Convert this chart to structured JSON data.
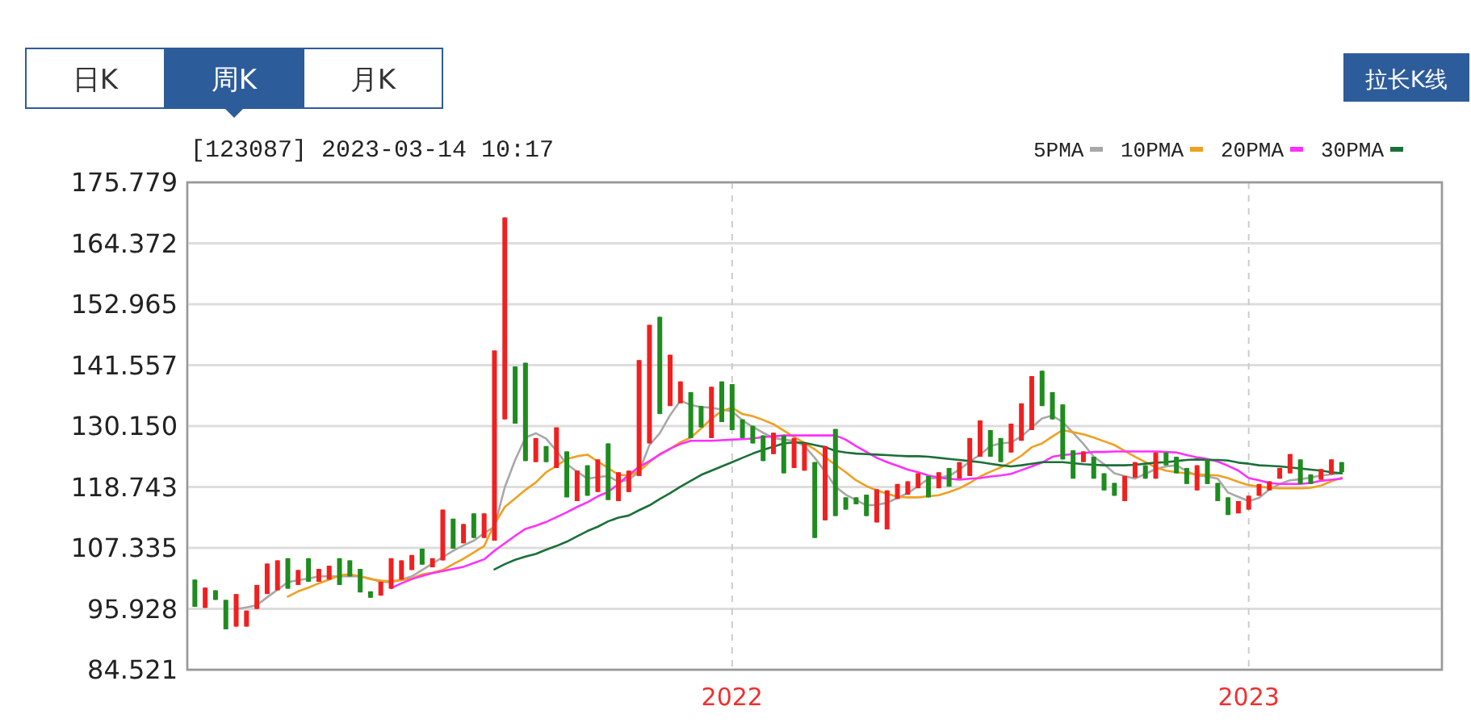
{
  "chart_data": {
    "type": "candlestick",
    "title": "[123087] 2023-03-14 10:17",
    "annotations": [
      "日K",
      "周K",
      "月K",
      "拉长K线"
    ],
    "categories": [
      null,
      null,
      null,
      null,
      null,
      null,
      null,
      null,
      null,
      null,
      null,
      null,
      null,
      null,
      null,
      null,
      null,
      null,
      null,
      null,
      null,
      null,
      null,
      null,
      null,
      null,
      null,
      null,
      null,
      null,
      null,
      null,
      null,
      null,
      null,
      null,
      null,
      null,
      null,
      null,
      null,
      null,
      null,
      null,
      null,
      null,
      null,
      null,
      null,
      null,
      null,
      null,
      "2022",
      null,
      null,
      null,
      null,
      null,
      null,
      null,
      null,
      null,
      null,
      null,
      null,
      null,
      null,
      null,
      null,
      null,
      null,
      null,
      null,
      null,
      null,
      null,
      null,
      null,
      null,
      null,
      null,
      null,
      null,
      null,
      null,
      null,
      null,
      null,
      null,
      null,
      null,
      null,
      null,
      null,
      null,
      null,
      null,
      null,
      null,
      null,
      null,
      null,
      "2023",
      null,
      null,
      null,
      null,
      null,
      null,
      null,
      null,
      null
    ],
    "ohlc": [
      [
        101.4,
        101.4,
        96.3,
        96.3
      ],
      [
        96.1,
        99.9,
        96.1,
        99.9
      ],
      [
        99.4,
        99.4,
        97.6,
        97.6
      ],
      [
        97.6,
        97.6,
        92.1,
        92.1
      ],
      [
        92.6,
        98.7,
        92.6,
        98.7
      ],
      [
        92.6,
        95.6,
        92.6,
        95.6
      ],
      [
        95.9,
        100.4,
        95.9,
        100.4
      ],
      [
        98.7,
        104.4,
        98.7,
        104.4
      ],
      [
        99.4,
        105.0,
        99.4,
        105.0
      ],
      [
        105.4,
        105.4,
        99.7,
        99.7
      ],
      [
        100.4,
        103.2,
        100.4,
        103.2
      ],
      [
        105.4,
        105.4,
        101.0,
        101.0
      ],
      [
        101.0,
        103.4,
        101.0,
        103.4
      ],
      [
        101.4,
        104.0,
        101.4,
        104.0
      ],
      [
        105.4,
        105.4,
        100.4,
        100.4
      ],
      [
        105.0,
        105.0,
        102.0,
        102.0
      ],
      [
        103.4,
        103.4,
        99.0,
        99.0
      ],
      [
        99.2,
        99.2,
        98.0,
        98.0
      ],
      [
        98.4,
        101.0,
        98.4,
        101.0
      ],
      [
        99.7,
        105.4,
        99.7,
        105.4
      ],
      [
        101.4,
        105.0,
        101.4,
        105.0
      ],
      [
        103.2,
        106.0,
        103.2,
        106.0
      ],
      [
        107.2,
        107.2,
        104.2,
        104.2
      ],
      [
        103.7,
        105.4,
        103.7,
        105.4
      ],
      [
        105.0,
        114.5,
        105.0,
        114.5
      ],
      [
        112.8,
        112.8,
        107.2,
        107.2
      ],
      [
        108.2,
        111.8,
        108.2,
        111.8
      ],
      [
        113.8,
        113.8,
        109.2,
        109.2
      ],
      [
        109.2,
        113.8,
        109.2,
        113.8
      ],
      [
        108.7,
        144.3,
        108.7,
        144.3
      ],
      [
        131.4,
        169.2,
        131.4,
        169.2
      ],
      [
        141.3,
        141.3,
        130.6,
        130.6
      ],
      [
        142.0,
        142.0,
        123.6,
        123.6
      ],
      [
        123.4,
        127.9,
        123.4,
        127.9
      ],
      [
        126.4,
        126.4,
        123.4,
        123.4
      ],
      [
        122.3,
        129.9,
        122.3,
        129.9
      ],
      [
        125.4,
        125.4,
        116.8,
        116.8
      ],
      [
        116.1,
        121.8,
        116.1,
        121.8
      ],
      [
        122.8,
        122.8,
        117.1,
        117.1
      ],
      [
        117.8,
        123.9,
        117.8,
        123.9
      ],
      [
        126.9,
        126.9,
        116.3,
        116.3
      ],
      [
        116.1,
        121.5,
        116.1,
        121.5
      ],
      [
        117.8,
        121.8,
        117.8,
        121.8
      ],
      [
        120.8,
        142.5,
        120.8,
        142.5
      ],
      [
        126.9,
        149.1,
        126.9,
        149.1
      ],
      [
        150.6,
        150.6,
        132.4,
        132.4
      ],
      [
        133.9,
        143.5,
        133.9,
        143.5
      ],
      [
        134.4,
        138.5,
        134.4,
        138.5
      ],
      [
        136.5,
        136.5,
        127.9,
        127.9
      ],
      [
        133.9,
        133.9,
        129.9,
        129.9
      ],
      [
        127.9,
        137.5,
        127.9,
        137.5
      ],
      [
        138.5,
        138.5,
        130.9,
        130.9
      ],
      [
        138.0,
        138.0,
        129.4,
        129.4
      ],
      [
        131.4,
        131.4,
        127.9,
        127.9
      ],
      [
        130.2,
        130.2,
        126.9,
        126.9
      ],
      [
        128.4,
        128.4,
        123.6,
        123.6
      ],
      [
        124.9,
        128.9,
        124.9,
        128.9
      ],
      [
        128.4,
        128.4,
        121.3,
        121.3
      ],
      [
        122.3,
        127.9,
        122.3,
        127.9
      ],
      [
        121.8,
        126.9,
        121.8,
        126.9
      ],
      [
        123.4,
        123.4,
        109.2,
        109.2
      ],
      [
        112.5,
        126.4,
        112.5,
        126.4
      ],
      [
        129.6,
        129.6,
        113.3,
        113.3
      ],
      [
        116.8,
        116.8,
        114.5,
        114.5
      ],
      [
        116.8,
        116.8,
        115.5,
        115.5
      ],
      [
        117.3,
        117.3,
        113.3,
        113.3
      ],
      [
        112.1,
        118.3,
        112.1,
        118.3
      ],
      [
        110.8,
        118.1,
        110.8,
        118.1
      ],
      [
        116.5,
        119.3,
        116.5,
        119.3
      ],
      [
        117.3,
        119.8,
        117.3,
        119.8
      ],
      [
        118.5,
        121.3,
        118.5,
        121.3
      ],
      [
        120.8,
        120.8,
        116.8,
        116.8
      ],
      [
        118.5,
        121.5,
        118.5,
        121.5
      ],
      [
        122.3,
        122.3,
        118.8,
        118.8
      ],
      [
        120.3,
        123.4,
        120.3,
        123.4
      ],
      [
        120.8,
        127.9,
        120.8,
        127.9
      ],
      [
        124.4,
        131.2,
        124.4,
        131.2
      ],
      [
        129.4,
        129.4,
        124.4,
        124.4
      ],
      [
        127.9,
        127.9,
        123.4,
        123.4
      ],
      [
        125.2,
        130.6,
        125.2,
        130.6
      ],
      [
        127.4,
        134.4,
        127.4,
        134.4
      ],
      [
        129.4,
        139.5,
        129.4,
        139.5
      ],
      [
        140.5,
        140.5,
        133.9,
        133.9
      ],
      [
        136.5,
        136.5,
        131.4,
        131.4
      ],
      [
        134.2,
        134.2,
        123.9,
        123.9
      ],
      [
        125.6,
        125.6,
        120.3,
        120.3
      ],
      [
        123.4,
        125.4,
        123.4,
        125.4
      ],
      [
        124.4,
        124.4,
        120.3,
        120.3
      ],
      [
        121.3,
        121.3,
        118.1,
        118.1
      ],
      [
        119.5,
        119.5,
        117.1,
        117.1
      ],
      [
        116.1,
        120.8,
        116.1,
        120.8
      ],
      [
        120.5,
        123.4,
        120.5,
        123.4
      ],
      [
        122.8,
        122.8,
        120.3,
        120.3
      ],
      [
        120.3,
        125.2,
        120.3,
        125.2
      ],
      [
        125.2,
        125.2,
        122.8,
        122.8
      ],
      [
        124.4,
        124.4,
        121.3,
        121.3
      ],
      [
        122.3,
        122.3,
        119.3,
        119.3
      ],
      [
        118.1,
        122.8,
        118.1,
        122.8
      ],
      [
        123.9,
        123.9,
        119.3,
        119.3
      ],
      [
        119.5,
        119.5,
        116.1,
        116.1
      ],
      [
        116.8,
        116.8,
        113.5,
        113.5
      ],
      [
        113.8,
        116.1,
        113.8,
        116.1
      ],
      [
        114.5,
        117.1,
        114.5,
        117.1
      ],
      [
        117.1,
        119.3,
        117.1,
        119.3
      ],
      [
        118.1,
        119.8,
        118.1,
        119.8
      ],
      [
        120.3,
        122.3,
        120.3,
        122.3
      ],
      [
        121.3,
        124.9,
        121.3,
        124.9
      ],
      [
        123.9,
        123.9,
        119.3,
        119.3
      ],
      [
        121.1,
        121.1,
        119.3,
        119.3
      ],
      [
        120.1,
        122.1,
        120.1,
        122.1
      ],
      [
        121.1,
        123.9,
        121.1,
        123.9
      ],
      [
        123.4,
        123.4,
        121.5,
        121.5
      ]
    ],
    "colors": [
      "#1e8c1e",
      "#f02020",
      "#1e8c1e",
      "#1e8c1e",
      "#f02020",
      "#f02020",
      "#f02020",
      "#f02020",
      "#f02020",
      "#1e8c1e",
      "#f02020",
      "#1e8c1e",
      "#f02020",
      "#f02020",
      "#1e8c1e",
      "#1e8c1e",
      "#1e8c1e",
      "#1e8c1e",
      "#f02020",
      "#f02020",
      "#f02020",
      "#f02020",
      "#1e8c1e",
      "#f02020",
      "#f02020",
      "#1e8c1e",
      "#f02020",
      "#1e8c1e",
      "#f02020",
      "#f02020",
      "#f02020",
      "#1e8c1e",
      "#1e8c1e",
      "#f02020",
      "#1e8c1e",
      "#f02020",
      "#1e8c1e",
      "#f02020",
      "#1e8c1e",
      "#f02020",
      "#1e8c1e",
      "#f02020",
      "#f02020",
      "#f02020",
      "#f02020",
      "#1e8c1e",
      "#f02020",
      "#f02020",
      "#1e8c1e",
      "#1e8c1e",
      "#f02020",
      "#1e8c1e",
      "#1e8c1e",
      "#1e8c1e",
      "#1e8c1e",
      "#1e8c1e",
      "#f02020",
      "#1e8c1e",
      "#f02020",
      "#f02020",
      "#1e8c1e",
      "#f02020",
      "#1e8c1e",
      "#1e8c1e",
      "#1e8c1e",
      "#1e8c1e",
      "#f02020",
      "#f02020",
      "#f02020",
      "#f02020",
      "#f02020",
      "#1e8c1e",
      "#f02020",
      "#1e8c1e",
      "#f02020",
      "#f02020",
      "#f02020",
      "#1e8c1e",
      "#1e8c1e",
      "#f02020",
      "#f02020",
      "#f02020",
      "#1e8c1e",
      "#1e8c1e",
      "#1e8c1e",
      "#1e8c1e",
      "#f02020",
      "#1e8c1e",
      "#1e8c1e",
      "#1e8c1e",
      "#f02020",
      "#f02020",
      "#1e8c1e",
      "#f02020",
      "#1e8c1e",
      "#1e8c1e",
      "#1e8c1e",
      "#f02020",
      "#1e8c1e",
      "#1e8c1e",
      "#1e8c1e",
      "#f02020",
      "#f02020",
      "#f02020",
      "#f02020",
      "#f02020",
      "#f02020",
      "#1e8c1e",
      "#1e8c1e",
      "#f02020",
      "#f02020",
      "#1e8c1e"
    ],
    "series": [
      {
        "name": "5PMA",
        "type": "line",
        "color": "#a8a8a8",
        "values": [
          null,
          null,
          null,
          null,
          95.9,
          96.2,
          96.6,
          98.1,
          99.5,
          100.9,
          101.3,
          101.6,
          102.0,
          102.0,
          102.0,
          102.0,
          102.0,
          101.6,
          101.0,
          100.9,
          101.4,
          102.0,
          103.2,
          104.4,
          105.6,
          106.8,
          107.8,
          108.7,
          110.1,
          111.3,
          118.7,
          123.8,
          128.0,
          128.8,
          127.8,
          125.5,
          123.0,
          121.6,
          120.3,
          120.6,
          120.8,
          119.7,
          120.1,
          121.6,
          126.6,
          128.8,
          132.2,
          134.9,
          134.1,
          133.7,
          133.6,
          133.2,
          132.9,
          131.2,
          130.0,
          128.9,
          127.9,
          127.6,
          127.4,
          126.4,
          124.2,
          121.6,
          118.8,
          117.3,
          116.3,
          115.3,
          115.4,
          115.8,
          116.7,
          117.6,
          118.9,
          120.3,
          120.5,
          120.8,
          122.0,
          123.5,
          124.8,
          126.4,
          126.9,
          127.1,
          128.2,
          129.9,
          131.6,
          132.1,
          130.9,
          128.9,
          126.8,
          124.4,
          123.0,
          121.3,
          120.8,
          120.3,
          121.2,
          122.1,
          122.6,
          122.8,
          121.7,
          120.9,
          120.7,
          120.3,
          117.7,
          116.9,
          116.1,
          116.7,
          118.3,
          119.3,
          120.0,
          120.2,
          120.5,
          120.9,
          121.1,
          121.3
        ]
      },
      {
        "name": "10PMA",
        "type": "line",
        "color": "#f0a020",
        "values": [
          null,
          null,
          null,
          null,
          null,
          null,
          null,
          null,
          null,
          98.2,
          99.2,
          99.9,
          100.7,
          101.4,
          102.2,
          102.4,
          102.0,
          101.5,
          101.2,
          101.1,
          101.3,
          101.6,
          102.4,
          102.7,
          103.2,
          104.3,
          105.3,
          106.5,
          107.7,
          111.8,
          115.0,
          116.6,
          118.2,
          119.6,
          121.5,
          122.7,
          124.0,
          124.5,
          124.8,
          123.5,
          122.3,
          121.0,
          120.9,
          121.7,
          123.4,
          124.9,
          125.9,
          127.1,
          128.0,
          129.7,
          131.5,
          133.0,
          133.6,
          132.4,
          132.0,
          131.3,
          130.5,
          129.3,
          128.1,
          127.0,
          125.8,
          124.3,
          122.9,
          121.5,
          120.0,
          118.9,
          118.1,
          117.5,
          116.9,
          116.8,
          116.8,
          117.0,
          117.2,
          117.8,
          118.5,
          119.5,
          120.7,
          121.6,
          122.4,
          123.4,
          124.6,
          126.2,
          126.9,
          128.2,
          129.4,
          129.0,
          128.6,
          128.0,
          127.3,
          126.6,
          125.5,
          124.4,
          123.4,
          122.4,
          121.8,
          121.5,
          121.3,
          121.1,
          121.0,
          120.9,
          120.4,
          119.7,
          119.1,
          118.8,
          118.6,
          118.5,
          118.5,
          118.5,
          118.6,
          119.0,
          119.8,
          120.5
        ]
      },
      {
        "name": "20PMA",
        "type": "line",
        "color": "#ff30ff",
        "values": [
          null,
          null,
          null,
          null,
          null,
          null,
          null,
          null,
          null,
          null,
          null,
          null,
          null,
          null,
          null,
          null,
          null,
          null,
          null,
          99.8,
          100.7,
          101.5,
          102.1,
          102.6,
          103.0,
          103.4,
          103.8,
          104.5,
          105.2,
          106.8,
          108.2,
          109.6,
          110.9,
          111.5,
          112.2,
          113.1,
          114.0,
          115.0,
          115.9,
          117.0,
          117.8,
          119.3,
          121.0,
          122.5,
          123.6,
          124.8,
          125.9,
          126.8,
          127.4,
          127.4,
          127.4,
          127.5,
          127.6,
          127.7,
          127.8,
          128.1,
          128.2,
          128.4,
          128.4,
          128.4,
          128.4,
          128.4,
          128.4,
          127.6,
          126.4,
          125.3,
          124.2,
          123.4,
          122.7,
          122.0,
          121.5,
          120.9,
          120.5,
          120.3,
          120.1,
          120.3,
          120.4,
          120.7,
          120.9,
          121.2,
          121.9,
          122.6,
          123.3,
          124.4,
          124.7,
          124.9,
          125.1,
          125.3,
          125.3,
          125.4,
          125.4,
          125.4,
          125.4,
          125.4,
          125.3,
          125.2,
          124.7,
          124.3,
          124.0,
          123.5,
          122.7,
          121.8,
          120.4,
          120.0,
          119.5,
          119.3,
          119.3,
          119.3,
          119.5,
          119.9,
          120.1,
          120.3
        ]
      },
      {
        "name": "30PMA",
        "type": "line",
        "color": "#1a7038",
        "values": [
          null,
          null,
          null,
          null,
          null,
          null,
          null,
          null,
          null,
          null,
          null,
          null,
          null,
          null,
          null,
          null,
          null,
          null,
          null,
          null,
          null,
          null,
          null,
          null,
          null,
          null,
          null,
          null,
          null,
          103.3,
          104.3,
          105.1,
          105.7,
          106.2,
          107.0,
          107.7,
          108.5,
          109.5,
          110.5,
          111.3,
          112.3,
          113.0,
          113.4,
          114.4,
          115.3,
          116.5,
          117.6,
          118.8,
          119.9,
          121.0,
          121.8,
          122.6,
          123.4,
          124.2,
          125.0,
          125.7,
          126.3,
          126.9,
          127.1,
          127.0,
          126.6,
          126.2,
          125.5,
          125.2,
          125.0,
          124.9,
          124.8,
          124.7,
          124.6,
          124.5,
          124.5,
          124.4,
          124.2,
          124.0,
          123.8,
          123.6,
          123.4,
          123.1,
          122.8,
          122.6,
          122.8,
          123.1,
          123.4,
          123.4,
          123.4,
          123.2,
          123.0,
          122.9,
          122.8,
          122.8,
          122.8,
          122.9,
          123.1,
          123.3,
          123.4,
          123.6,
          123.8,
          123.9,
          123.8,
          123.8,
          123.7,
          123.3,
          123.1,
          122.8,
          122.7,
          122.6,
          122.4,
          122.2,
          122.0,
          121.8,
          121.5,
          121.3
        ]
      }
    ],
    "ylim": [
      84.521,
      175.779
    ],
    "yticks": [
      84.521,
      95.928,
      107.335,
      118.743,
      {
        "value": 130.15,
        "label": "130.150"
      },
      141.557,
      152.965,
      164.372,
      175.779
    ],
    "grid": true,
    "legend": "top right"
  }
}
